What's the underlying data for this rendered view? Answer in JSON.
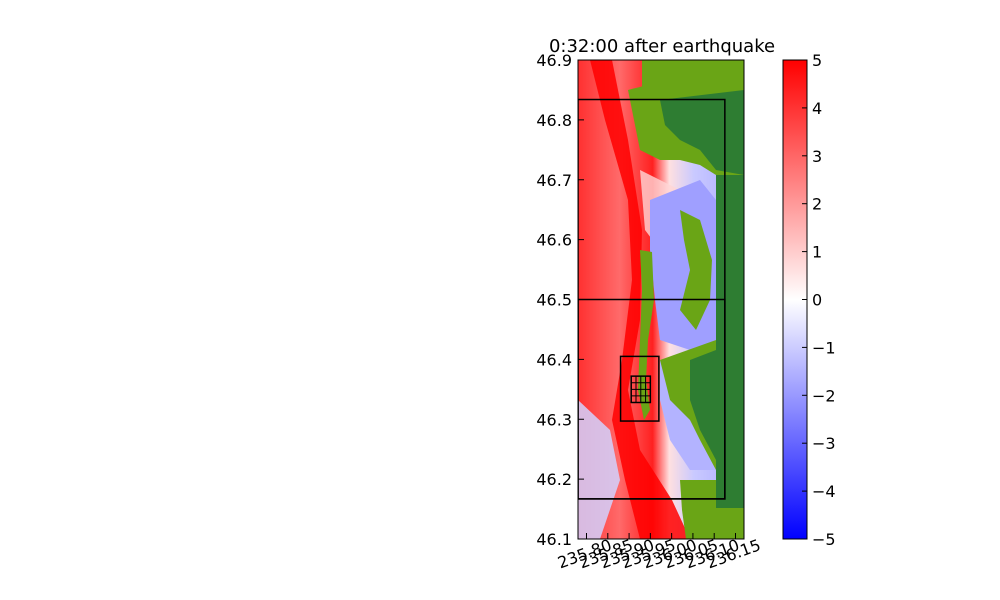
{
  "chart_data": {
    "type": "heatmap",
    "title": "0:32:00 after earthquake",
    "xlabel": "",
    "ylabel": "",
    "xlim": [
      235.78,
      236.17
    ],
    "ylim": [
      46.1,
      46.9
    ],
    "x_ticks": [
      235.8,
      235.85,
      235.9,
      235.95,
      236.0,
      236.05,
      236.1,
      236.15
    ],
    "x_tick_labels": [
      "235.80",
      "235.85",
      "235.90",
      "235.95",
      "236.00",
      "236.05",
      "236.10",
      "236.15"
    ],
    "y_ticks": [
      46.1,
      46.2,
      46.3,
      46.4,
      46.5,
      46.6,
      46.7,
      46.8,
      46.9
    ],
    "y_tick_labels": [
      "46.1",
      "46.2",
      "46.3",
      "46.4",
      "46.5",
      "46.6",
      "46.7",
      "46.8",
      "46.9"
    ],
    "colorbar": {
      "min": -5,
      "max": 5,
      "ticks": [
        5,
        4,
        3,
        2,
        1,
        0,
        -1,
        -2,
        -3,
        -4,
        -5
      ],
      "tick_labels": [
        "5",
        "4",
        "3",
        "2",
        "1",
        "0",
        "−1",
        "−2",
        "−3",
        "−4",
        "−5"
      ],
      "colors": {
        "high": "#ff0000",
        "mid": "#ffffff",
        "low": "#0000ff"
      }
    },
    "land_colors": {
      "light": "#6aa516",
      "dark": "#2e7d32"
    },
    "refinement_regions": [
      {
        "x": [
          235.78,
          236.125
        ],
        "y": [
          46.167,
          46.834
        ]
      },
      {
        "x": [
          235.78,
          236.125
        ],
        "y": [
          46.167,
          46.5
        ]
      },
      {
        "x": [
          235.88,
          235.97
        ],
        "y": [
          46.297,
          46.405
        ]
      },
      {
        "x": [
          235.905,
          235.95
        ],
        "y": [
          46.328,
          46.372
        ]
      }
    ]
  }
}
